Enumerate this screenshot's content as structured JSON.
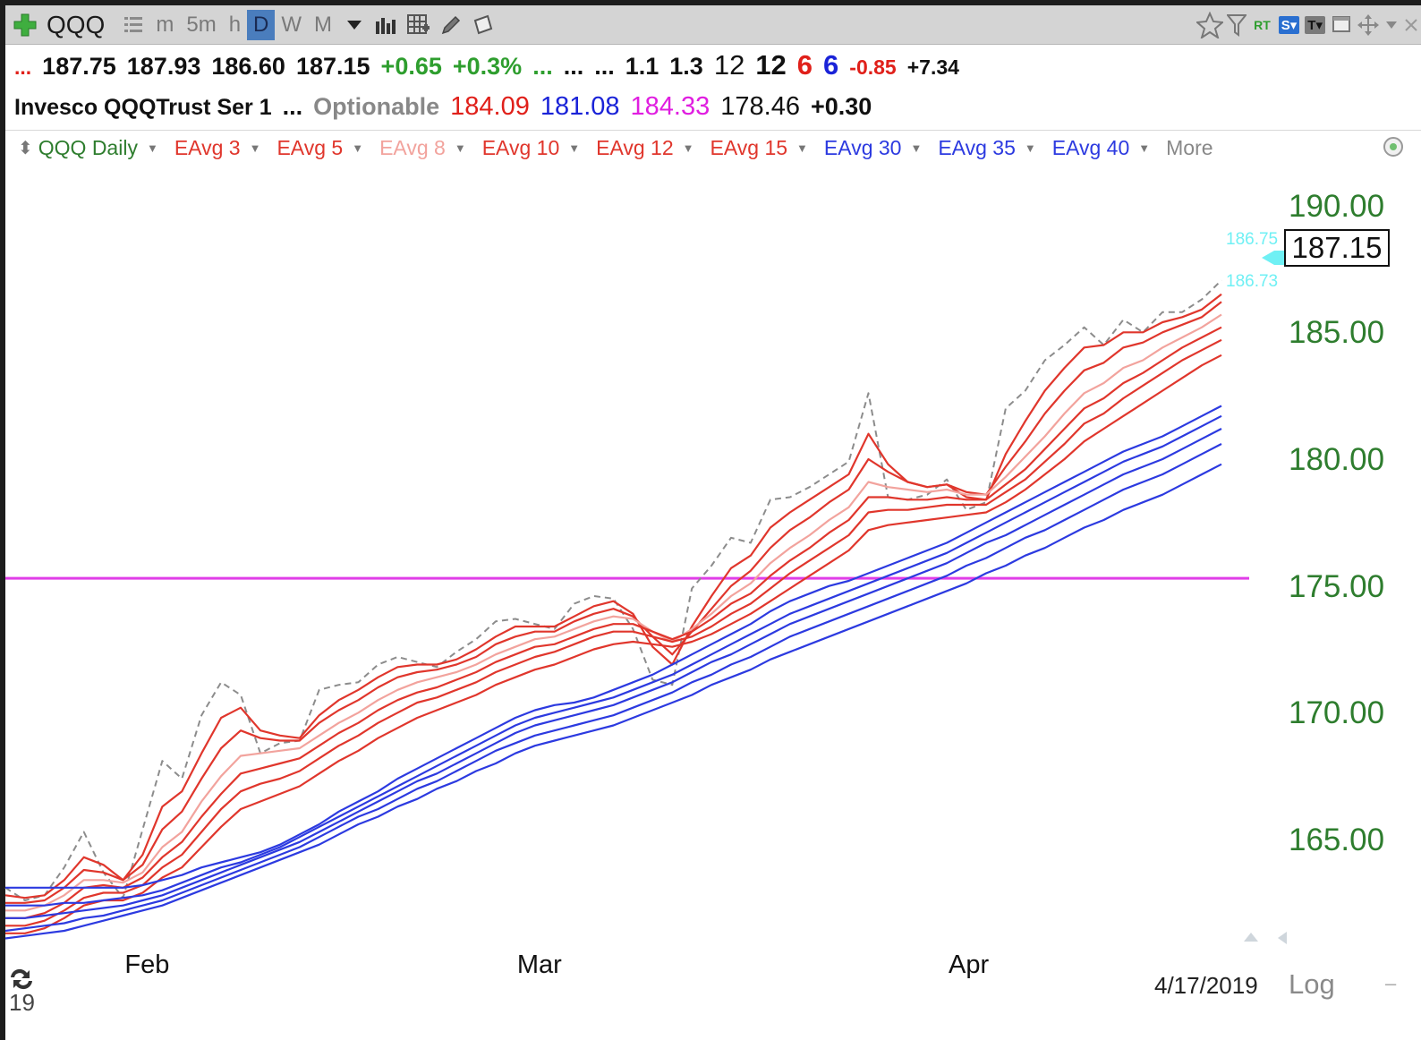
{
  "toolbar": {
    "symbol": "QQQ",
    "timeframes": [
      "m",
      "5m",
      "h",
      "D",
      "W",
      "M"
    ],
    "active_timeframe": "D",
    "rt_label": "RT",
    "s_label": "S",
    "t_label": "T"
  },
  "quote": {
    "lead_dots": "...",
    "open": "187.75",
    "high": "187.93",
    "low": "186.60",
    "close": "187.15",
    "change": "+0.65",
    "change_pct": "+0.3%",
    "dots_green": "...",
    "dots_1": "...",
    "dots_2": "...",
    "v1": "1.1",
    "v2": "1.3",
    "n1": "12",
    "n2": "12",
    "n3": "6",
    "n4": "6",
    "n5": "-0.85",
    "n6": "+7.34"
  },
  "info": {
    "name": "Invesco QQQTrust Ser 1",
    "dots": "...",
    "optionable": "Optionable",
    "p1": "184.09",
    "p2": "181.08",
    "p3": "184.33",
    "p4": "178.46",
    "p5": "+0.30"
  },
  "legend": {
    "items": [
      {
        "label": "QQQ Daily",
        "color": "#2e7d2e"
      },
      {
        "label": "EAvg 3",
        "color": "#e0362c"
      },
      {
        "label": "EAvg 5",
        "color": "#e0362c"
      },
      {
        "label": "EAvg 8",
        "color": "#f2a39d"
      },
      {
        "label": "EAvg 10",
        "color": "#e0362c"
      },
      {
        "label": "EAvg 12",
        "color": "#e0362c"
      },
      {
        "label": "EAvg 15",
        "color": "#e0362c"
      },
      {
        "label": "EAvg 30",
        "color": "#2c3ae0"
      },
      {
        "label": "EAvg 35",
        "color": "#2c3ae0"
      },
      {
        "label": "EAvg 40",
        "color": "#2c3ae0"
      }
    ],
    "more": "More"
  },
  "chart_data": {
    "type": "line",
    "title": "",
    "xlabel": "",
    "ylabel": "",
    "ylim": [
      161.5,
      191.5
    ],
    "ytick_labels": [
      "190.00",
      "185.00",
      "180.00",
      "175.00",
      "170.00",
      "165.00"
    ],
    "ytick_values": [
      190,
      185,
      180,
      175,
      170,
      165
    ],
    "xtick_labels": [
      "Feb",
      "Mar",
      "Apr"
    ],
    "xtick_index": [
      7,
      27,
      49
    ],
    "x_count": 63,
    "horizontal_line": 175.4,
    "last_price": "187.15",
    "last_price_value": 187.15,
    "bid_label": "186.75",
    "ask_label": "186.73",
    "date_label": "4/17/2019",
    "scale_label": "Log",
    "year_label": "19",
    "series": [
      {
        "name": "QQQ Daily",
        "color": "#8c8c8c",
        "dashed": true,
        "values": [
          163.2,
          162.7,
          162.9,
          164.0,
          165.4,
          163.8,
          162.8,
          165.5,
          168.2,
          167.5,
          170.0,
          171.3,
          170.8,
          168.5,
          168.9,
          169.0,
          171.0,
          171.2,
          171.3,
          172.0,
          172.3,
          172.1,
          171.9,
          172.5,
          173.0,
          173.7,
          173.8,
          173.6,
          173.4,
          174.4,
          174.7,
          174.6,
          173.4,
          171.4,
          171.2,
          175.0,
          175.9,
          177.0,
          176.8,
          178.5,
          178.6,
          179.0,
          179.5,
          180.0,
          182.7,
          178.6,
          178.5,
          178.7,
          179.3,
          178.1,
          178.4,
          182.1,
          182.8,
          184.0,
          184.6,
          185.3,
          184.6,
          185.6,
          185.1,
          185.9,
          185.9,
          186.4,
          187.15
        ]
      },
      {
        "name": "EAvg 3",
        "color": "#e0362c",
        "values": [
          162.9,
          162.8,
          162.9,
          163.5,
          164.4,
          164.1,
          163.5,
          164.5,
          166.4,
          167.0,
          168.5,
          169.9,
          170.3,
          169.4,
          169.2,
          169.1,
          170.0,
          170.6,
          171.0,
          171.5,
          171.9,
          172.0,
          172.0,
          172.2,
          172.6,
          173.1,
          173.5,
          173.5,
          173.5,
          173.9,
          174.3,
          174.5,
          174.0,
          172.7,
          172.0,
          173.5,
          174.7,
          175.8,
          176.3,
          177.4,
          178.0,
          178.5,
          179.0,
          179.5,
          181.1,
          179.9,
          179.2,
          179.0,
          179.1,
          178.6,
          178.5,
          180.3,
          181.6,
          182.8,
          183.7,
          184.5,
          184.6,
          185.1,
          185.1,
          185.5,
          185.7,
          186.0,
          186.6
        ]
      },
      {
        "name": "EAvg 5",
        "color": "#e0362c",
        "values": [
          162.6,
          162.6,
          162.7,
          163.2,
          163.9,
          163.8,
          163.5,
          164.1,
          165.5,
          166.2,
          167.5,
          168.7,
          169.4,
          169.1,
          169.0,
          169.0,
          169.7,
          170.2,
          170.6,
          171.1,
          171.5,
          171.7,
          171.8,
          172.0,
          172.3,
          172.8,
          173.1,
          173.3,
          173.3,
          173.7,
          174.0,
          174.2,
          173.9,
          173.1,
          172.4,
          173.3,
          174.2,
          175.1,
          175.7,
          176.6,
          177.3,
          177.8,
          178.4,
          178.9,
          180.1,
          179.6,
          179.2,
          179.0,
          179.1,
          178.8,
          178.7,
          179.8,
          180.8,
          181.9,
          182.8,
          183.6,
          183.9,
          184.5,
          184.7,
          185.1,
          185.4,
          185.7,
          186.3
        ]
      },
      {
        "name": "EAvg 8",
        "color": "#f2a39d",
        "values": [
          162.3,
          162.3,
          162.5,
          162.9,
          163.5,
          163.5,
          163.4,
          163.8,
          164.8,
          165.4,
          166.6,
          167.6,
          168.4,
          168.5,
          168.6,
          168.7,
          169.2,
          169.7,
          170.1,
          170.6,
          171.0,
          171.3,
          171.5,
          171.7,
          172.0,
          172.4,
          172.7,
          173.0,
          173.1,
          173.4,
          173.7,
          173.9,
          173.8,
          173.3,
          172.9,
          173.4,
          174.0,
          174.7,
          175.2,
          176.0,
          176.6,
          177.1,
          177.7,
          178.2,
          179.2,
          179.0,
          178.9,
          178.8,
          178.9,
          178.7,
          178.7,
          179.4,
          180.2,
          181.0,
          181.9,
          182.7,
          183.1,
          183.7,
          184.0,
          184.5,
          184.9,
          185.3,
          185.8
        ]
      },
      {
        "name": "EAvg 10",
        "color": "#e0362c",
        "values": [
          162.0,
          162.0,
          162.2,
          162.6,
          163.2,
          163.3,
          163.2,
          163.6,
          164.4,
          165.0,
          166.0,
          166.9,
          167.7,
          167.9,
          168.1,
          168.3,
          168.8,
          169.3,
          169.7,
          170.2,
          170.6,
          170.9,
          171.1,
          171.4,
          171.7,
          172.1,
          172.4,
          172.7,
          172.8,
          173.1,
          173.4,
          173.6,
          173.6,
          173.3,
          173.0,
          173.3,
          173.8,
          174.4,
          174.8,
          175.5,
          176.1,
          176.6,
          177.2,
          177.7,
          178.6,
          178.6,
          178.5,
          178.5,
          178.6,
          178.5,
          178.5,
          179.1,
          179.7,
          180.5,
          181.3,
          182.1,
          182.5,
          183.1,
          183.5,
          184.0,
          184.5,
          184.9,
          185.3
        ]
      },
      {
        "name": "EAvg 12",
        "color": "#e0362c",
        "values": [
          161.7,
          161.7,
          161.9,
          162.3,
          162.8,
          163.0,
          163.0,
          163.3,
          164.0,
          164.5,
          165.4,
          166.3,
          167.0,
          167.3,
          167.5,
          167.8,
          168.3,
          168.8,
          169.2,
          169.7,
          170.1,
          170.5,
          170.7,
          171.0,
          171.3,
          171.7,
          172.0,
          172.3,
          172.5,
          172.8,
          173.1,
          173.3,
          173.3,
          173.1,
          172.9,
          173.1,
          173.5,
          174.0,
          174.4,
          175.0,
          175.6,
          176.1,
          176.6,
          177.1,
          178.0,
          178.1,
          178.1,
          178.2,
          178.3,
          178.3,
          178.3,
          178.8,
          179.3,
          180.0,
          180.7,
          181.5,
          181.9,
          182.5,
          183.0,
          183.5,
          184.0,
          184.4,
          184.8
        ]
      },
      {
        "name": "EAvg 15",
        "color": "#e0362c",
        "values": [
          161.4,
          161.4,
          161.6,
          162.0,
          162.5,
          162.7,
          162.7,
          163.0,
          163.6,
          164.0,
          164.8,
          165.6,
          166.3,
          166.6,
          166.9,
          167.2,
          167.7,
          168.2,
          168.6,
          169.1,
          169.5,
          169.9,
          170.2,
          170.5,
          170.8,
          171.2,
          171.5,
          171.8,
          172.0,
          172.3,
          172.6,
          172.8,
          172.9,
          172.8,
          172.7,
          172.9,
          173.2,
          173.6,
          174.0,
          174.5,
          175.0,
          175.5,
          176.0,
          176.5,
          177.3,
          177.5,
          177.6,
          177.7,
          177.8,
          177.9,
          178.0,
          178.4,
          178.9,
          179.5,
          180.1,
          180.8,
          181.3,
          181.8,
          182.3,
          182.8,
          183.3,
          183.8,
          184.2
        ]
      },
      {
        "name": "EAvg 30",
        "color": "#2c3ae0",
        "values": [
          163.2,
          163.2,
          163.2,
          163.2,
          163.2,
          163.2,
          163.2,
          163.3,
          163.5,
          163.7,
          164.0,
          164.2,
          164.4,
          164.6,
          164.9,
          165.3,
          165.7,
          166.2,
          166.6,
          167.0,
          167.5,
          167.9,
          168.3,
          168.7,
          169.1,
          169.5,
          169.9,
          170.2,
          170.4,
          170.5,
          170.7,
          171.0,
          171.3,
          171.6,
          172.0,
          172.4,
          172.8,
          173.2,
          173.6,
          174.1,
          174.5,
          174.8,
          175.1,
          175.3,
          175.6,
          175.9,
          176.2,
          176.5,
          176.8,
          177.2,
          177.6,
          178.0,
          178.4,
          178.8,
          179.2,
          179.6,
          180.0,
          180.4,
          180.7,
          181.0,
          181.4,
          181.8,
          182.2
        ]
      },
      {
        "name": "EAvg 35",
        "color": "#2c3ae0",
        "values": [
          162.5,
          162.5,
          162.5,
          162.6,
          162.6,
          162.7,
          162.8,
          162.9,
          163.1,
          163.4,
          163.7,
          164.0,
          164.2,
          164.5,
          164.8,
          165.2,
          165.6,
          166.0,
          166.4,
          166.8,
          167.2,
          167.6,
          168.0,
          168.4,
          168.8,
          169.2,
          169.6,
          169.9,
          170.1,
          170.3,
          170.5,
          170.7,
          171.0,
          171.3,
          171.6,
          172.0,
          172.4,
          172.8,
          173.2,
          173.6,
          174.0,
          174.3,
          174.6,
          174.9,
          175.2,
          175.5,
          175.8,
          176.1,
          176.4,
          176.8,
          177.2,
          177.6,
          178.0,
          178.4,
          178.8,
          179.2,
          179.6,
          180.0,
          180.3,
          180.6,
          181.0,
          181.4,
          181.8
        ]
      },
      {
        "name": "EAvg 40",
        "color": "#2c3ae0",
        "values": [
          162.0,
          162.0,
          162.1,
          162.2,
          162.3,
          162.4,
          162.5,
          162.7,
          162.9,
          163.2,
          163.5,
          163.8,
          164.1,
          164.4,
          164.7,
          165.0,
          165.4,
          165.8,
          166.2,
          166.6,
          167.0,
          167.4,
          167.7,
          168.1,
          168.5,
          168.9,
          169.3,
          169.6,
          169.8,
          170.0,
          170.2,
          170.4,
          170.7,
          171.0,
          171.3,
          171.7,
          172.1,
          172.4,
          172.8,
          173.2,
          173.6,
          173.9,
          174.2,
          174.5,
          174.8,
          175.1,
          175.4,
          175.7,
          176.0,
          176.4,
          176.8,
          177.1,
          177.5,
          177.9,
          178.3,
          178.7,
          179.1,
          179.5,
          179.8,
          180.1,
          180.5,
          180.9,
          181.3
        ]
      },
      {
        "name": "",
        "color": "#2c3ae0",
        "values": [
          161.5,
          161.6,
          161.7,
          161.8,
          162.0,
          162.1,
          162.3,
          162.5,
          162.7,
          163.0,
          163.3,
          163.6,
          163.9,
          164.2,
          164.5,
          164.8,
          165.2,
          165.6,
          166.0,
          166.3,
          166.7,
          167.1,
          167.4,
          167.8,
          168.2,
          168.6,
          168.9,
          169.2,
          169.4,
          169.6,
          169.8,
          170.0,
          170.3,
          170.6,
          170.9,
          171.3,
          171.6,
          172.0,
          172.3,
          172.7,
          173.1,
          173.4,
          173.7,
          174.0,
          174.3,
          174.6,
          174.9,
          175.2,
          175.5,
          175.9,
          176.2,
          176.6,
          177.0,
          177.3,
          177.7,
          178.1,
          178.5,
          178.9,
          179.2,
          179.5,
          179.9,
          180.3,
          180.7
        ]
      },
      {
        "name": "",
        "color": "#2c3ae0",
        "values": [
          161.2,
          161.3,
          161.4,
          161.5,
          161.7,
          161.9,
          162.1,
          162.3,
          162.5,
          162.8,
          163.1,
          163.4,
          163.7,
          164.0,
          164.3,
          164.6,
          164.9,
          165.3,
          165.7,
          166.0,
          166.4,
          166.7,
          167.1,
          167.4,
          167.8,
          168.1,
          168.5,
          168.8,
          169.0,
          169.2,
          169.4,
          169.6,
          169.9,
          170.2,
          170.5,
          170.8,
          171.2,
          171.5,
          171.8,
          172.2,
          172.5,
          172.8,
          173.1,
          173.4,
          173.7,
          174.0,
          174.3,
          174.6,
          174.9,
          175.2,
          175.6,
          175.9,
          176.3,
          176.6,
          177.0,
          177.4,
          177.7,
          178.1,
          178.4,
          178.7,
          179.1,
          179.5,
          179.9
        ]
      }
    ]
  }
}
